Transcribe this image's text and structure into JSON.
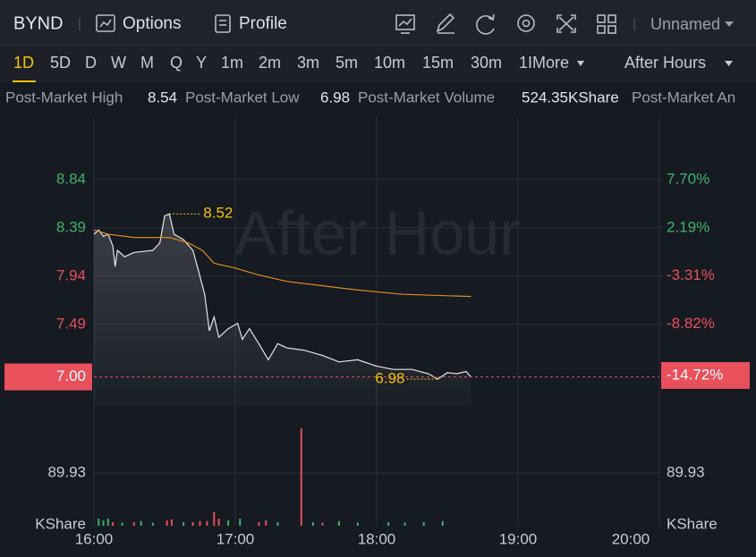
{
  "header": {
    "symbol": "BYND",
    "tabs": [
      "Options",
      "Profile"
    ],
    "layout_name": "Unnamed"
  },
  "timeframes": {
    "items": [
      "1D",
      "5D",
      "D",
      "W",
      "M",
      "Q",
      "Y",
      "1m",
      "2m",
      "3m",
      "5m",
      "10m",
      "15m",
      "30m",
      "1IMore"
    ],
    "session": "After Hours"
  },
  "stats": [
    {
      "label": "Post-Market High",
      "value": 8.54
    },
    {
      "label": "Post-Market Low",
      "value": 6.98
    },
    {
      "label": "Post-Market Volume",
      "value": "524.35KShare"
    },
    {
      "label": "Post-Market An"
    }
  ],
  "chart_data": {
    "type": "line",
    "watermark": "After Hour",
    "xlim": [
      "16:00",
      "20:00"
    ],
    "xticks": [
      "16:00",
      "17:00",
      "18:00",
      "19:00",
      "20:00"
    ],
    "ylim": [
      6.68,
      9.43
    ],
    "yticks": [
      8.84,
      8.39,
      7.94,
      7.49
    ],
    "y2lim": [
      -18.82,
      14.97
    ],
    "y2ticks": [
      {
        "value": 7.7,
        "label": "7.70%"
      },
      {
        "value": 2.19,
        "label": "2.19%"
      },
      {
        "value": -3.31,
        "label": "-3.31%"
      },
      {
        "value": -8.82,
        "label": "-8.82%"
      }
    ],
    "grid": true,
    "up_color": "#3bb56c",
    "down_color": "#e8505b",
    "series": [
      {
        "color": "#e6e6e6",
        "x": [
          "16:00",
          "16:02",
          "16:04",
          "16:06",
          "16:08",
          "16:09",
          "16:10",
          "16:13",
          "16:17",
          "16:21",
          "16:25",
          "16:28",
          "16:30",
          "16:32",
          "16:34",
          "16:38",
          "16:42",
          "16:44",
          "16:47",
          "16:49",
          "16:51",
          "16:53",
          "16:57",
          "17:01",
          "17:03",
          "17:06",
          "17:10",
          "17:14",
          "17:18",
          "17:22",
          "17:29",
          "17:37",
          "17:44",
          "17:52",
          "18:00",
          "18:07",
          "18:15",
          "18:22",
          "18:26",
          "18:30",
          "18:34",
          "18:38",
          "18:40"
        ],
        "values": [
          8.33,
          8.37,
          8.31,
          8.33,
          8.22,
          8.03,
          8.18,
          8.12,
          8.16,
          8.17,
          8.18,
          8.25,
          8.5,
          8.52,
          8.33,
          8.28,
          8.18,
          8.02,
          7.77,
          7.43,
          7.56,
          7.37,
          7.45,
          7.5,
          7.35,
          7.45,
          7.31,
          7.16,
          7.31,
          7.27,
          7.25,
          7.2,
          7.14,
          7.16,
          7.1,
          7.07,
          7.07,
          7.03,
          6.98,
          7.04,
          7.03,
          7.05,
          7.0
        ]
      },
      {
        "color": "#e08a1e",
        "x": [
          "16:00",
          "16:06",
          "16:17",
          "16:32",
          "16:40",
          "16:46",
          "16:51",
          "16:59",
          "17:10",
          "17:22",
          "17:37",
          "17:52",
          "18:11",
          "18:40"
        ],
        "values": [
          8.37,
          8.33,
          8.3,
          8.3,
          8.25,
          8.18,
          8.06,
          8.02,
          7.95,
          7.89,
          7.85,
          7.81,
          7.77,
          7.75
        ]
      }
    ],
    "last": {
      "price": {
        "value": 7,
        "label": "7.00"
      },
      "change": {
        "value": -14.72,
        "label": "-14.72%"
      },
      "color": "#e8505b"
    },
    "annotations": {
      "color": "#f5c400",
      "points": [
        {
          "x": "16:32",
          "value": 8.52
        },
        {
          "x": "18:26",
          "value": 6.98
        }
      ]
    },
    "volume": {
      "type": "bar",
      "ylim": [
        0,
        180
      ],
      "yticks": [
        89.93
      ],
      "unit": "KShare",
      "x": [
        "16:02",
        "16:04",
        "16:06",
        "16:08",
        "16:12",
        "16:17",
        "16:20",
        "16:25",
        "16:31",
        "16:33",
        "16:38",
        "16:42",
        "16:45",
        "16:48",
        "16:51",
        "16:53",
        "16:57",
        "17:02",
        "17:10",
        "17:13",
        "17:18",
        "17:28",
        "17:33",
        "17:37",
        "17:44",
        "17:52",
        "18:05",
        "18:12",
        "18:20",
        "18:28"
      ],
      "values": [
        12,
        9,
        12,
        6,
        5,
        6,
        8,
        5,
        9,
        11,
        6,
        6,
        8,
        8,
        23,
        12,
        9,
        12,
        6,
        9,
        6,
        166,
        6,
        5,
        8,
        5,
        6,
        5,
        6,
        8
      ],
      "colors": [
        "#3bb56c",
        "#3bb56c",
        "#3bb56c",
        "#e8505b",
        "#3bb56c",
        "#e8505b",
        "#3bb56c",
        "#3bb56c",
        "#e8505b",
        "#e8505b",
        "#3bb56c",
        "#e8505b",
        "#e8505b",
        "#e8505b",
        "#e8505b",
        "#e8505b",
        "#3bb56c",
        "#3bb56c",
        "#e8505b",
        "#e8505b",
        "#3bb56c",
        "#e8505b",
        "#3bb56c",
        "#e8505b",
        "#3bb56c",
        "#3bb56c",
        "#3bb56c",
        "#3bb56c",
        "#3bb56c",
        "#3bb56c"
      ]
    }
  }
}
